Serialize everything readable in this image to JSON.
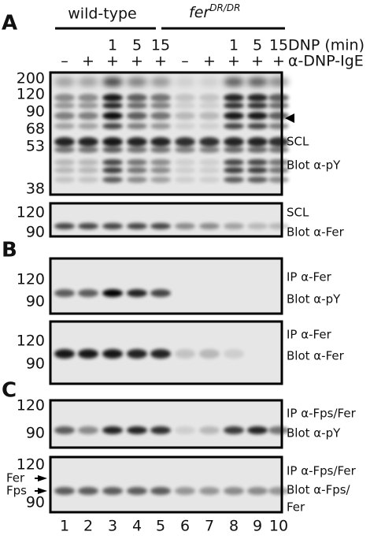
{
  "panels": [
    "A",
    "B",
    "C"
  ],
  "header": {
    "wild_type": "wild-type",
    "fer": "fer",
    "fer_sup": "DR/DR",
    "dnp_label": "DNP (min)",
    "ige_label": "α-DNP-IgE",
    "dnp_times": [
      "1",
      "5",
      "15",
      "1",
      "5",
      "15"
    ],
    "ige": [
      "–",
      "+",
      "+",
      "+",
      "+",
      "–",
      "+",
      "+",
      "+",
      "+"
    ]
  },
  "blots": [
    {
      "markers": [
        "200",
        "120",
        "90",
        "68",
        "53",
        "38"
      ],
      "labels": [
        "SCL",
        "Blot α-pY"
      ]
    },
    {
      "markers": [
        "120",
        "90"
      ],
      "labels": [
        "SCL",
        "Blot α-Fer"
      ]
    },
    {
      "markers": [
        "120",
        "90"
      ],
      "labels": [
        "IP α-Fer",
        "Blot α-pY"
      ]
    },
    {
      "markers": [
        "120",
        "90"
      ],
      "labels": [
        "IP α-Fer",
        "Blot α-Fer"
      ]
    },
    {
      "markers": [
        "120",
        "90"
      ],
      "labels": [
        "IP α-Fps/Fer",
        "Blot α-pY"
      ]
    },
    {
      "markers": [
        "120",
        "90"
      ],
      "labels": [
        "IP α-Fps/Fer",
        "Blot α-Fps/",
        "Fer"
      ],
      "arrows": [
        "Fer",
        "Fps"
      ]
    }
  ],
  "lanes": [
    "1",
    "2",
    "3",
    "4",
    "5",
    "6",
    "7",
    "8",
    "9",
    "10"
  ]
}
